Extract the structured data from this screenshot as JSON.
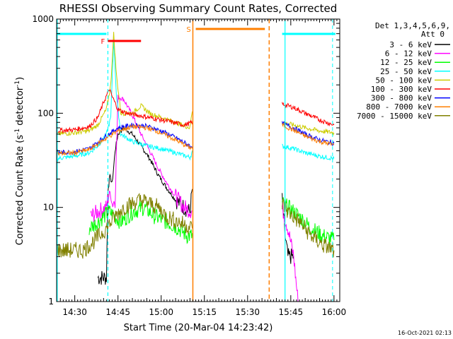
{
  "chart_data": {
    "type": "line",
    "title": "RHESSI Observing Summary Count Rates, Corrected",
    "xlabel": "Start Time (20-Mar-04 14:23:42)",
    "ylabel_main": "Corrected Count Rate (s",
    "ylabel_sup1": "-1",
    "ylabel_mid": " detector",
    "ylabel_sup2": "-1",
    "ylabel_end": ")",
    "yscale": "log",
    "ylim": [
      1,
      1000
    ],
    "xlim": [
      "14:23:42",
      "16:02:00"
    ],
    "x_ticks": [
      "14:30",
      "14:45",
      "15:00",
      "15:15",
      "15:30",
      "15:45",
      "16:00"
    ],
    "y_ticks": [
      "1",
      "10",
      "100",
      "1000"
    ],
    "timestamp": "16-Oct-2021 02:13",
    "legend_header": [
      "Det 1,3,4,5,6,9,",
      "Att 0"
    ],
    "legend_placement": "top-right, outside plot",
    "flags": {
      "F_label": "F",
      "F_color": "#ff0000",
      "F_range": [
        "14:41:30",
        "14:53:00"
      ],
      "S_label": "S",
      "S_color": "#ff7f00",
      "S_range": [
        "15:12:00",
        "15:36:00"
      ],
      "night_color": "#00ffff",
      "night_bars": [
        [
          "14:23:42",
          "14:41:00"
        ],
        [
          "15:42:00",
          "16:00:30"
        ]
      ]
    },
    "markers": {
      "saa_lines": [
        "15:11:00",
        "15:37:30"
      ],
      "night_lines": [
        "14:41:30",
        "15:43:00"
      ],
      "night_dashed": [
        "14:23:42",
        "15:59:30"
      ]
    },
    "series": [
      {
        "name": "3 - 6 keV",
        "color": "#000000",
        "x": [
          "14:38:00",
          "14:41:00",
          "14:41:30",
          "14:42:00",
          "14:43:00",
          "14:44:00",
          "14:45:00",
          "14:47:00",
          "14:50:00",
          "14:53:00",
          "14:56:00",
          "14:59:00",
          "15:02:00",
          "15:05:00",
          "15:08:00",
          "15:10:00",
          "15:11:00",
          "15:42:00",
          "15:43:00",
          "15:44:00",
          "15:46:00"
        ],
        "values": [
          1.8,
          1.8,
          14,
          22,
          18,
          40,
          60,
          70,
          60,
          45,
          33,
          22,
          16,
          12,
          10,
          9,
          18,
          12,
          5,
          3,
          3
        ]
      },
      {
        "name": "6 - 12 keV",
        "color": "#ff00ff",
        "x": [
          "14:35:30",
          "14:38:00",
          "14:41:00",
          "14:42:00",
          "14:43:00",
          "14:44:00",
          "14:45:00",
          "14:47:00",
          "14:50:00",
          "14:53:00",
          "14:56:00",
          "14:59:00",
          "15:02:00",
          "15:05:00",
          "15:08:00",
          "15:11:00",
          "15:42:00",
          "15:44:00",
          "15:46:00",
          "15:47:30"
        ],
        "values": [
          8,
          9,
          10,
          15,
          11,
          12,
          150,
          140,
          95,
          60,
          40,
          26,
          18,
          13,
          10,
          9,
          10,
          6,
          3,
          1
        ]
      },
      {
        "name": "12 - 25 keV",
        "color": "#00ff00",
        "x": [
          "14:35:00",
          "14:38:00",
          "14:40:00",
          "14:42:00",
          "14:44:00",
          "14:46:00",
          "14:50:00",
          "14:54:00",
          "14:58:00",
          "15:02:00",
          "15:06:00",
          "15:09:00",
          "15:11:00",
          "15:42:00",
          "15:44:00",
          "15:48:00",
          "15:52:00",
          "15:56:00",
          "16:00:00"
        ],
        "values": [
          6,
          7,
          8,
          9,
          8,
          7,
          9,
          10,
          8,
          7,
          6,
          5,
          5,
          11,
          10,
          8,
          6,
          5,
          4.5
        ]
      },
      {
        "name": "25 - 50 keV",
        "color": "#00ffff",
        "x": [
          "14:23:42",
          "14:30:00",
          "14:35:00",
          "14:38:00",
          "14:41:00",
          "14:42:30",
          "14:43:30",
          "14:44:30",
          "14:46:00",
          "14:50:00",
          "14:55:00",
          "15:00:00",
          "15:05:00",
          "15:10:00",
          "15:11:00",
          "15:42:00",
          "15:46:00",
          "15:50:00",
          "15:55:00",
          "16:00:00"
        ],
        "values": [
          33,
          35,
          38,
          45,
          60,
          90,
          600,
          150,
          60,
          50,
          45,
          42,
          38,
          34,
          40,
          45,
          42,
          38,
          35,
          33
        ]
      },
      {
        "name": "50 - 100 keV",
        "color": "#cccc00",
        "x": [
          "14:23:42",
          "14:30:00",
          "14:35:00",
          "14:38:00",
          "14:41:00",
          "14:42:30",
          "14:43:30",
          "14:44:30",
          "14:46:00",
          "14:50:00",
          "14:53:00",
          "14:56:00",
          "15:00:00",
          "15:05:00",
          "15:10:00",
          "15:11:00",
          "15:42:00",
          "15:46:00",
          "15:50:00",
          "15:55:00",
          "16:00:00"
        ],
        "values": [
          60,
          62,
          65,
          75,
          110,
          200,
          700,
          250,
          100,
          100,
          120,
          100,
          90,
          80,
          70,
          120,
          80,
          75,
          70,
          65,
          62
        ]
      },
      {
        "name": "100 - 300 keV",
        "color": "#ff0000",
        "x": [
          "14:23:42",
          "14:30:00",
          "14:35:00",
          "14:38:00",
          "14:40:00",
          "14:42:00",
          "14:43:00",
          "14:45:00",
          "14:48:00",
          "14:52:00",
          "14:56:00",
          "15:00:00",
          "15:04:00",
          "15:08:00",
          "15:11:00",
          "15:42:00",
          "15:46:00",
          "15:50:00",
          "15:55:00",
          "16:00:00"
        ],
        "values": [
          65,
          67,
          72,
          90,
          130,
          180,
          150,
          110,
          100,
          95,
          90,
          85,
          80,
          75,
          80,
          125,
          115,
          100,
          85,
          75
        ]
      },
      {
        "name": "300 - 800 keV",
        "color": "#0000ff",
        "x": [
          "14:23:42",
          "14:30:00",
          "14:35:00",
          "14:40:00",
          "14:45:00",
          "14:50:00",
          "14:55:00",
          "15:00:00",
          "15:05:00",
          "15:10:00",
          "15:11:00",
          "15:42:00",
          "15:46:00",
          "15:50:00",
          "15:55:00",
          "16:00:00"
        ],
        "values": [
          38,
          39,
          42,
          55,
          70,
          75,
          73,
          65,
          55,
          45,
          45,
          78,
          70,
          60,
          52,
          48
        ]
      },
      {
        "name": "800 - 7000 keV",
        "color": "#ff7f00",
        "x": [
          "14:23:42",
          "14:30:00",
          "14:35:00",
          "14:40:00",
          "14:45:00",
          "14:50:00",
          "14:55:00",
          "15:00:00",
          "15:05:00",
          "15:10:00",
          "15:11:00",
          "15:42:00",
          "15:46:00",
          "15:50:00",
          "15:55:00",
          "16:00:00"
        ],
        "values": [
          37,
          38,
          41,
          52,
          65,
          72,
          70,
          62,
          52,
          43,
          43,
          75,
          66,
          57,
          50,
          46
        ]
      },
      {
        "name": "7000 - 15000 keV",
        "color": "#808000",
        "x": [
          "14:23:42",
          "14:28:00",
          "14:33:00",
          "14:37:00",
          "14:41:00",
          "14:44:00",
          "14:47:00",
          "14:50:00",
          "14:53:00",
          "14:56:00",
          "14:59:00",
          "15:02:00",
          "15:06:00",
          "15:11:00",
          "15:42:00",
          "15:44:00",
          "15:48:00",
          "15:52:00",
          "15:56:00",
          "16:00:00"
        ],
        "values": [
          3.5,
          3.5,
          3.5,
          4.5,
          6,
          8,
          10,
          11,
          12,
          11,
          10,
          8,
          7,
          6,
          11,
          9,
          7,
          5,
          4,
          3.5
        ]
      }
    ]
  }
}
